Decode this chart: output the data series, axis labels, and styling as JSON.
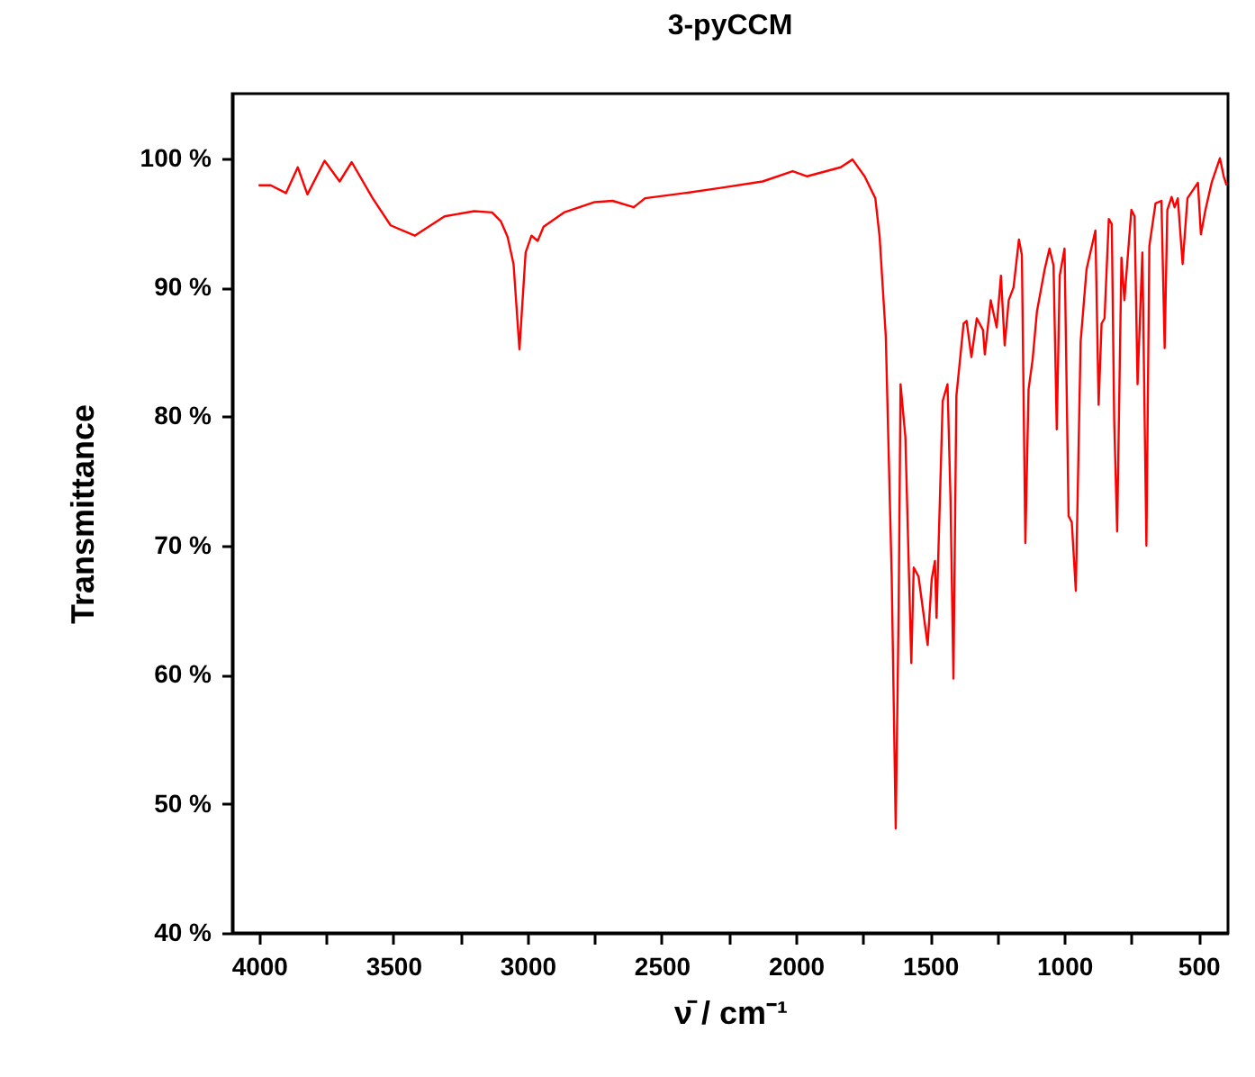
{
  "chart_data": {
    "type": "line",
    "title": "3-pyCCM",
    "xlabel": "ν̄ / cm⁻¹",
    "ylabel": "Transmittance",
    "xlim": [
      4100,
      390
    ],
    "ylim": [
      40,
      105
    ],
    "xticks": [
      4000,
      {
        "value": 3750,
        "label": null
      },
      3500,
      {
        "value": 3250,
        "label": null
      },
      3000,
      {
        "value": 2750,
        "label": null
      },
      2500,
      {
        "value": 2250,
        "label": null
      },
      2000,
      {
        "value": 1750,
        "label": null
      },
      1500,
      {
        "value": 1250,
        "label": null
      },
      1000,
      {
        "value": 750,
        "label": null
      },
      500
    ],
    "yticks": [
      {
        "value": 40,
        "label": "40 %"
      },
      {
        "value": 50,
        "label": "50 %"
      },
      {
        "value": 60,
        "label": "60 %"
      },
      {
        "value": 70,
        "label": "70 %"
      },
      {
        "value": 80,
        "label": "80 %"
      },
      {
        "value": 90,
        "label": "90 %"
      },
      {
        "value": 100,
        "label": "100 %"
      }
    ],
    "grid": false,
    "marker": "none",
    "line_style": "solid",
    "x": [
      4002,
      3957,
      3900,
      3856,
      3820,
      3756,
      3700,
      3655,
      3577,
      3510,
      3420,
      3309,
      3199,
      3132,
      3099,
      3074,
      3052,
      3030,
      3007,
      2985,
      2962,
      2940,
      2864,
      2750,
      2683,
      2604,
      2562,
      2414,
      2280,
      2124,
      2012,
      1958,
      1833,
      1789,
      1744,
      1704,
      1688,
      1665,
      1643,
      1628,
      1617,
      1610,
      1592,
      1570,
      1561,
      1543,
      1509,
      1494,
      1482,
      1476,
      1453,
      1435,
      1424,
      1413,
      1402,
      1375,
      1364,
      1346,
      1326,
      1303,
      1296,
      1274,
      1252,
      1236,
      1222,
      1207,
      1189,
      1169,
      1158,
      1145,
      1133,
      1118,
      1102,
      1073,
      1055,
      1040,
      1028,
      1017,
      999,
      984,
      972,
      957,
      939,
      917,
      884,
      872,
      861,
      850,
      834,
      823,
      814,
      803,
      787,
      776,
      750,
      738,
      727,
      709,
      694,
      683,
      660,
      638,
      626,
      616,
      600,
      589,
      577,
      559,
      541,
      502,
      491,
      474,
      451,
      420,
      406,
      395
    ],
    "series": [
      {
        "color": "#ff0000",
        "values": [
          97.9,
          97.9,
          97.3,
          99.3,
          97.2,
          99.8,
          98.2,
          99.7,
          96.9,
          94.8,
          94.0,
          95.5,
          95.9,
          95.8,
          95.1,
          93.9,
          91.8,
          85.2,
          92.7,
          94.0,
          93.6,
          94.7,
          95.8,
          96.6,
          96.7,
          96.2,
          96.9,
          97.3,
          97.7,
          98.2,
          99.0,
          98.6,
          99.3,
          99.9,
          98.6,
          96.9,
          93.9,
          86.2,
          67.6,
          48.1,
          65.3,
          82.5,
          78.4,
          60.9,
          68.3,
          67.6,
          62.3,
          67.4,
          68.8,
          64.4,
          81.2,
          82.5,
          73.7,
          59.7,
          81.6,
          87.2,
          87.4,
          84.6,
          87.6,
          86.7,
          84.8,
          89.0,
          86.9,
          90.9,
          85.5,
          89.0,
          90.0,
          93.7,
          92.5,
          70.2,
          82.1,
          84.4,
          88.1,
          91.4,
          93.0,
          91.7,
          79.0,
          90.9,
          93.0,
          72.3,
          71.8,
          66.5,
          85.8,
          91.4,
          94.4,
          80.9,
          87.2,
          87.6,
          95.3,
          94.9,
          79.7,
          71.1,
          92.3,
          89.0,
          96.0,
          95.5,
          82.5,
          92.7,
          70.0,
          93.2,
          96.5,
          96.7,
          85.3,
          96.0,
          97.0,
          96.2,
          96.9,
          91.8,
          96.9,
          98.1,
          94.1,
          96.0,
          98.1,
          100.0,
          98.6,
          97.9
        ]
      }
    ]
  }
}
